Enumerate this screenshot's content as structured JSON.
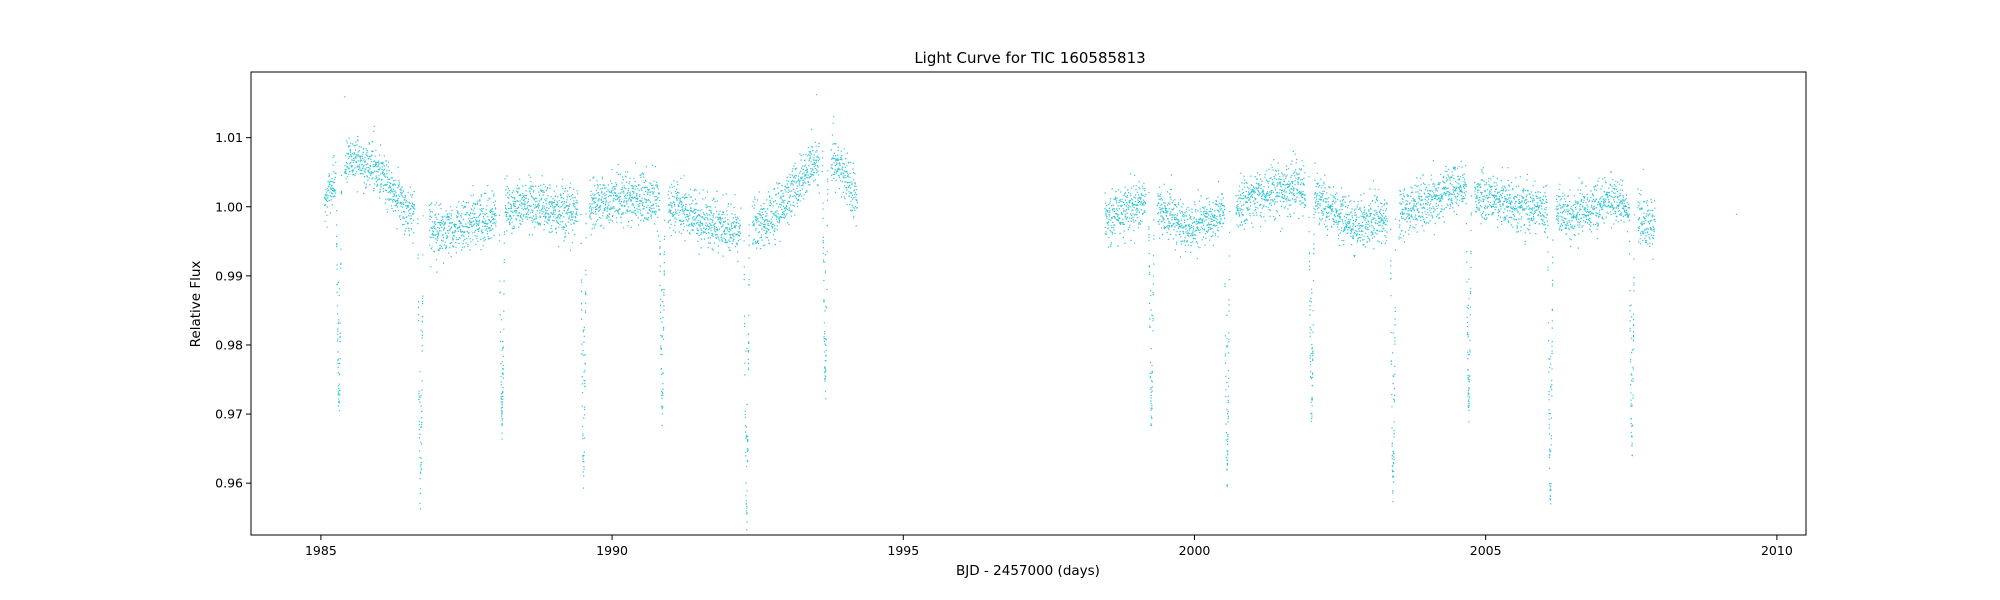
{
  "chart_data": {
    "type": "scatter",
    "title": "Light Curve for TIC 160585813",
    "xlabel": "BJD - 2457000 (days)",
    "ylabel": "Relative Flux",
    "xlim": [
      1983.8,
      2010.5
    ],
    "ylim": [
      0.9525,
      1.0195
    ],
    "xticks": [
      1985,
      1990,
      1995,
      2000,
      2005,
      2010
    ],
    "yticks": [
      0.96,
      0.97,
      0.98,
      0.99,
      1.0,
      1.01
    ],
    "ytick_labels": [
      "0.96",
      "0.97",
      "0.98",
      "0.99",
      "1.00",
      "1.01"
    ],
    "grid": false,
    "marker_color": "#17becf",
    "series": [
      {
        "segments": [
          {
            "x_start": 1985.05,
            "x_end": 1994.2
          },
          {
            "x_start": 1998.45,
            "x_end": 2007.9
          }
        ],
        "gaps": [
          [
            1985.25,
            1985.4
          ],
          [
            1986.6,
            1986.85
          ],
          [
            1988.0,
            1988.15
          ],
          [
            1989.4,
            1989.6
          ],
          [
            1990.8,
            1990.95
          ],
          [
            1992.2,
            1992.4
          ],
          [
            1993.55,
            1993.75
          ],
          [
            1999.15,
            1999.35
          ],
          [
            2000.5,
            2000.7
          ],
          [
            2001.9,
            2002.05
          ],
          [
            2003.3,
            2003.5
          ],
          [
            2004.65,
            2004.8
          ],
          [
            2006.05,
            2006.2
          ],
          [
            2007.45,
            2007.6
          ]
        ],
        "trend": [
          {
            "x": 1985.05,
            "y": 1.001
          },
          {
            "x": 1985.5,
            "y": 1.007
          },
          {
            "x": 1985.9,
            "y": 1.006
          },
          {
            "x": 1986.4,
            "y": 1.0
          },
          {
            "x": 1987.0,
            "y": 0.9965
          },
          {
            "x": 1987.8,
            "y": 0.9985
          },
          {
            "x": 1988.5,
            "y": 1.0005
          },
          {
            "x": 1989.3,
            "y": 0.9995
          },
          {
            "x": 1990.3,
            "y": 1.0015
          },
          {
            "x": 1990.9,
            "y": 1.001
          },
          {
            "x": 1991.5,
            "y": 0.998
          },
          {
            "x": 1992.2,
            "y": 0.9965
          },
          {
            "x": 1992.8,
            "y": 0.999
          },
          {
            "x": 1993.4,
            "y": 1.006
          },
          {
            "x": 1993.8,
            "y": 1.007
          },
          {
            "x": 1994.2,
            "y": 1.001
          },
          {
            "x": 1998.45,
            "y": 0.998
          },
          {
            "x": 1999.1,
            "y": 1.001
          },
          {
            "x": 1999.9,
            "y": 0.997
          },
          {
            "x": 2000.5,
            "y": 0.9995
          },
          {
            "x": 2001.2,
            "y": 1.002
          },
          {
            "x": 2001.8,
            "y": 1.003
          },
          {
            "x": 2002.7,
            "y": 0.9975
          },
          {
            "x": 2003.4,
            "y": 0.9985
          },
          {
            "x": 2004.0,
            "y": 1.001
          },
          {
            "x": 2004.6,
            "y": 1.003
          },
          {
            "x": 2005.3,
            "y": 1.0005
          },
          {
            "x": 2006.0,
            "y": 0.9995
          },
          {
            "x": 2006.5,
            "y": 0.9985
          },
          {
            "x": 2007.1,
            "y": 1.001
          },
          {
            "x": 2007.4,
            "y": 1.0005
          },
          {
            "x": 2007.9,
            "y": 0.997
          }
        ],
        "eclipses": [
          {
            "t": 1985.3,
            "depth": 0.971
          },
          {
            "t": 1986.7,
            "depth": 0.9585
          },
          {
            "t": 1988.1,
            "depth": 0.969
          },
          {
            "t": 1989.5,
            "depth": 0.961
          },
          {
            "t": 1990.85,
            "depth": 0.971
          },
          {
            "t": 1992.3,
            "depth": 0.9555
          },
          {
            "t": 1993.65,
            "depth": 0.975
          },
          {
            "t": 1999.25,
            "depth": 0.97
          },
          {
            "t": 2000.55,
            "depth": 0.9615
          },
          {
            "t": 2002.0,
            "depth": 0.9695
          },
          {
            "t": 2003.4,
            "depth": 0.959
          },
          {
            "t": 2004.7,
            "depth": 0.971
          },
          {
            "t": 2006.1,
            "depth": 0.9585
          },
          {
            "t": 2007.5,
            "depth": 0.965
          }
        ],
        "isolated_points": [
          {
            "x": 2009.3,
            "y": 0.999
          },
          {
            "x": 1985.4,
            "y": 1.016
          },
          {
            "x": 1993.5,
            "y": 1.0163
          }
        ]
      }
    ]
  }
}
